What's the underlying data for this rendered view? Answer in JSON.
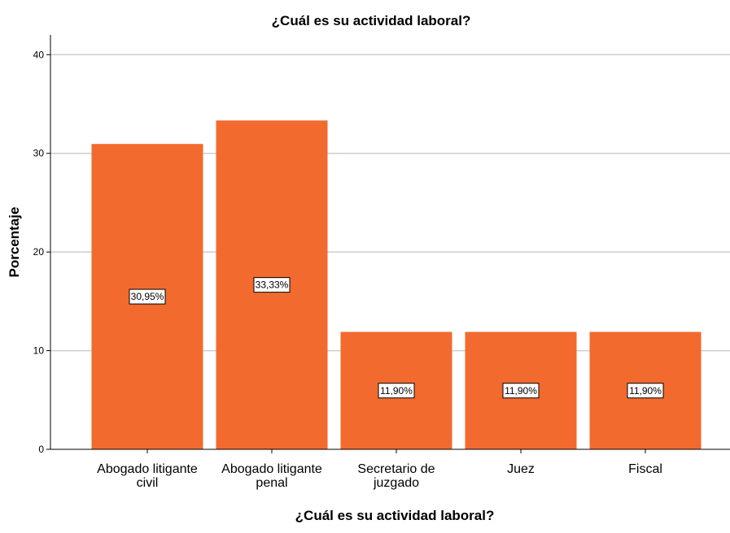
{
  "chart_data": {
    "type": "bar",
    "title": "¿Cuál es su actividad laboral?",
    "xlabel": "¿Cuál es su actividad laboral?",
    "ylabel": "Porcentaje",
    "categories": [
      [
        "Abogado litigante",
        "civil"
      ],
      [
        "Abogado litigante",
        "penal"
      ],
      [
        "Secretario de",
        "juzgado"
      ],
      [
        "Juez"
      ],
      [
        "Fiscal"
      ]
    ],
    "values": [
      30.95,
      33.33,
      11.9,
      11.9,
      11.9
    ],
    "data_labels": [
      "30,95%",
      "33,33%",
      "11,90%",
      "11,90%",
      "11,90%"
    ],
    "ylim": [
      0,
      42
    ],
    "yticks": [
      0,
      10,
      20,
      30,
      40
    ],
    "grid": true,
    "bar_color": "#f26a2e",
    "grid_color": "#cccccc"
  }
}
